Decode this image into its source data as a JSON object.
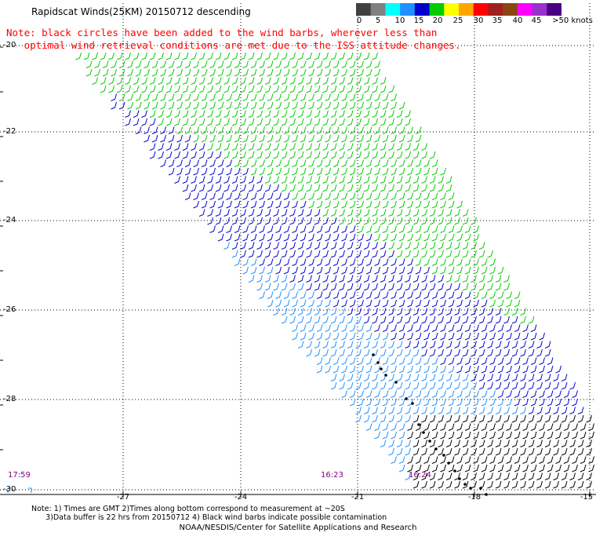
{
  "title": "Rapidscat Winds(25KM) 20150712 descending",
  "note_lines": [
    "Note: black circles have been added to the wind barbs, wherever less than",
    "   optimal wind retrieval conditions are met due to the ISS attitude changes."
  ],
  "colorbar": {
    "labels": [
      "0",
      "5",
      "10",
      "15",
      "20",
      "25",
      "30",
      "35",
      "40",
      "45",
      ">50 knots"
    ],
    "colors": [
      "#404040",
      "#808080",
      "#00ffff",
      "#1e90ff",
      "#0000cd",
      "#00cc00",
      "#ffff00",
      "#ffa500",
      "#ff0000",
      "#a02020",
      "#8b4513",
      "#ff00ff",
      "#9932cc",
      "#4b0082"
    ]
  },
  "axes": {
    "lat_labels": [
      "-20",
      "-22",
      "-24",
      "-26",
      "-28",
      "-30"
    ],
    "lon_labels": [
      "-27",
      "-24",
      "-21",
      "-18",
      "-15"
    ]
  },
  "time_labels": [
    "17:59",
    "16:23",
    "16:24"
  ],
  "footnotes": [
    "Note: 1) Times are GMT 2)Times along bottom correspond to measurement at ~20S",
    "      3)Data buffer is 22 hrs from 20150712 4) Black wind barbs indicate possible contamination"
  ],
  "credit": "NOAA/NESDIS/Center for Satellite Applications and Research"
}
